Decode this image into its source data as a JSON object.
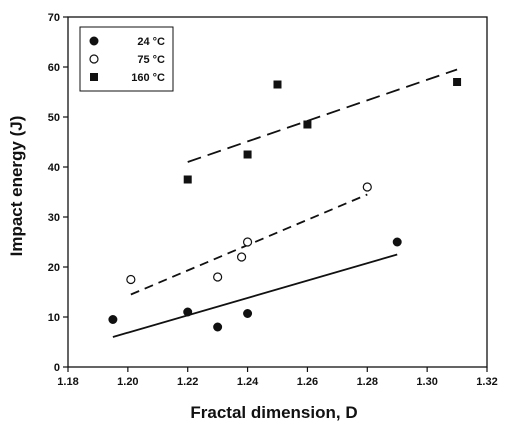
{
  "chart_data": {
    "type": "scatter",
    "xlabel": "Fractal dimension, D",
    "ylabel": "Impact energy (J)",
    "xlim": [
      1.18,
      1.32
    ],
    "ylim": [
      0,
      70
    ],
    "xticks": [
      "1.18",
      "1.20",
      "1.22",
      "1.24",
      "1.26",
      "1.28",
      "1.30",
      "1.32"
    ],
    "yticks": [
      "0",
      "10",
      "20",
      "30",
      "40",
      "50",
      "60",
      "70"
    ],
    "grid": false,
    "legend_position": "top-left",
    "series": [
      {
        "name": "24 °C",
        "marker": "filled-circle",
        "points": [
          [
            1.195,
            9.5
          ],
          [
            1.22,
            11
          ],
          [
            1.23,
            8
          ],
          [
            1.24,
            10.7
          ],
          [
            1.29,
            25
          ]
        ],
        "fit": [
          [
            1.195,
            6
          ],
          [
            1.29,
            22.5
          ]
        ],
        "fit_style": "solid"
      },
      {
        "name": "75 °C",
        "marker": "open-circle",
        "points": [
          [
            1.201,
            17.5
          ],
          [
            1.23,
            18
          ],
          [
            1.238,
            22
          ],
          [
            1.24,
            25
          ],
          [
            1.28,
            36
          ]
        ],
        "fit": [
          [
            1.201,
            14.5
          ],
          [
            1.28,
            34.5
          ]
        ],
        "fit_style": "dashed"
      },
      {
        "name": "160 °C",
        "marker": "filled-square",
        "points": [
          [
            1.22,
            37.5
          ],
          [
            1.24,
            42.5
          ],
          [
            1.25,
            56.5
          ],
          [
            1.26,
            48.5
          ],
          [
            1.31,
            57
          ]
        ],
        "fit": [
          [
            1.22,
            41
          ],
          [
            1.31,
            59.5
          ]
        ],
        "fit_style": "dashed-long"
      }
    ]
  }
}
